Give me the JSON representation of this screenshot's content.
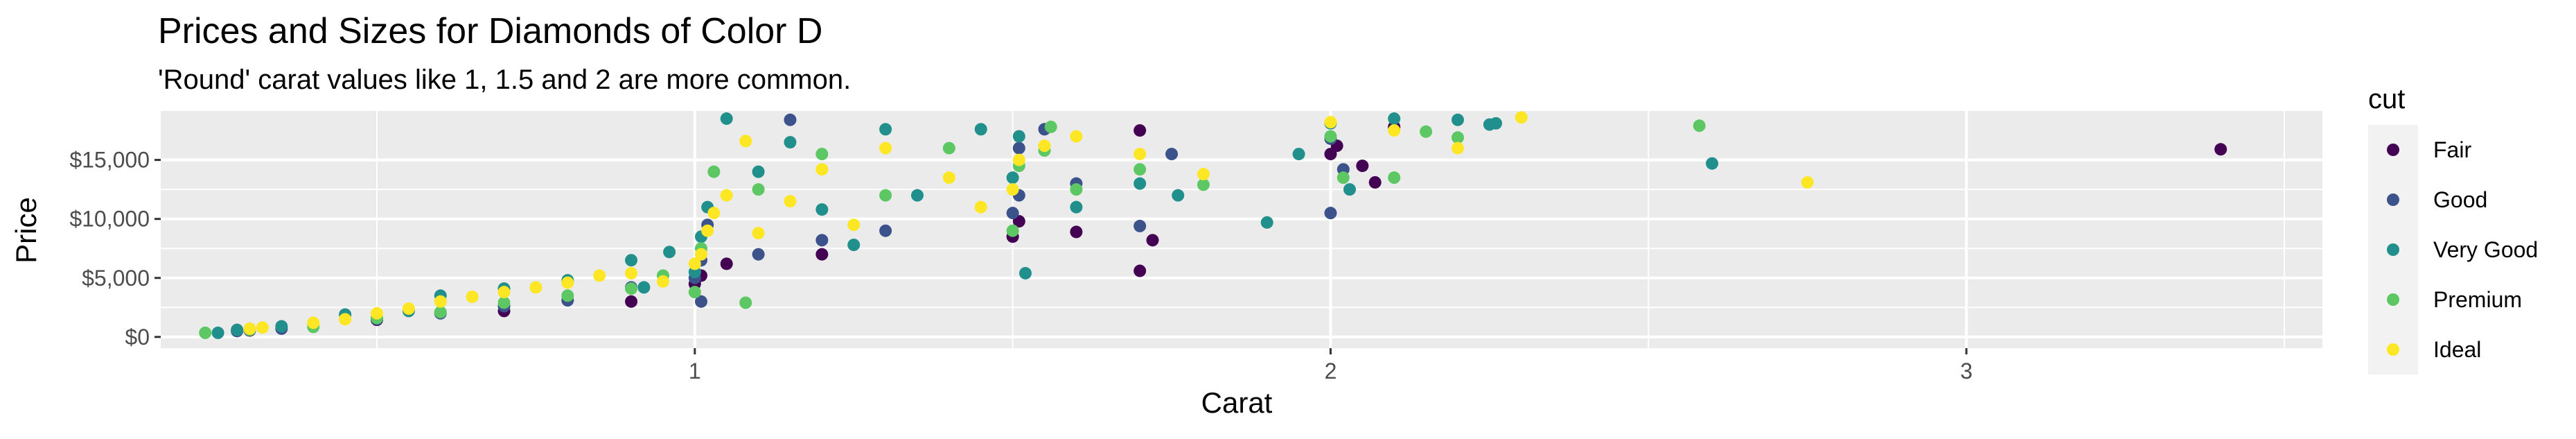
{
  "chart_data": {
    "type": "scatter",
    "title": "Prices and Sizes for Diamonds of Color D",
    "subtitle": "'Round' carat values like 1, 1.5 and 2 are more common.",
    "xlabel": "Carat",
    "ylabel": "Price",
    "xlim": [
      0.16,
      3.56
    ],
    "ylim": [
      -950,
      19150
    ],
    "x_ticks": [
      1,
      2,
      3
    ],
    "x_minor_ticks": [
      0.5,
      1.5,
      2.5,
      3.5
    ],
    "y_ticks": [
      0,
      5000,
      10000,
      15000
    ],
    "y_tick_labels": [
      "$0",
      "$5,000",
      "$10,000",
      "$15,000"
    ],
    "grid": true,
    "legend": {
      "title": "cut",
      "placement": "right",
      "entries": [
        {
          "name": "Fair",
          "color": "#440154"
        },
        {
          "name": "Good",
          "color": "#3B528B"
        },
        {
          "name": "Very Good",
          "color": "#21908C"
        },
        {
          "name": "Premium",
          "color": "#5DC863"
        },
        {
          "name": "Ideal",
          "color": "#FDE725"
        }
      ]
    },
    "series": [
      {
        "name": "Fair",
        "color": "#440154",
        "points": [
          [
            0.3,
            550
          ],
          [
            0.5,
            1450
          ],
          [
            0.7,
            2200
          ],
          [
            0.9,
            3000
          ],
          [
            1.0,
            4500
          ],
          [
            1.01,
            5200
          ],
          [
            1.05,
            6200
          ],
          [
            1.2,
            7000
          ],
          [
            1.5,
            8500
          ],
          [
            1.51,
            9800
          ],
          [
            1.6,
            8900
          ],
          [
            1.7,
            5600
          ],
          [
            1.72,
            8200
          ],
          [
            1.7,
            17500
          ],
          [
            2.0,
            15500
          ],
          [
            2.01,
            16200
          ],
          [
            2.05,
            14500
          ],
          [
            2.1,
            17800
          ],
          [
            2.07,
            13100
          ],
          [
            3.4,
            15900
          ]
        ]
      },
      {
        "name": "Good",
        "color": "#3B528B",
        "points": [
          [
            0.28,
            500
          ],
          [
            0.3,
            650
          ],
          [
            0.35,
            700
          ],
          [
            0.5,
            1500
          ],
          [
            0.6,
            2000
          ],
          [
            0.7,
            2600
          ],
          [
            0.8,
            3100
          ],
          [
            0.9,
            4200
          ],
          [
            1.0,
            5000
          ],
          [
            1.01,
            3000
          ],
          [
            1.01,
            6500
          ],
          [
            1.02,
            9500
          ],
          [
            1.1,
            7000
          ],
          [
            1.15,
            18400
          ],
          [
            1.2,
            8200
          ],
          [
            1.3,
            9000
          ],
          [
            1.5,
            10500
          ],
          [
            1.51,
            12000
          ],
          [
            1.51,
            16000
          ],
          [
            1.55,
            17600
          ],
          [
            1.6,
            13000
          ],
          [
            1.7,
            9400
          ],
          [
            1.75,
            15500
          ],
          [
            2.0,
            10500
          ],
          [
            2.0,
            16800
          ],
          [
            2.02,
            14200
          ]
        ]
      },
      {
        "name": "Very Good",
        "color": "#21908C",
        "points": [
          [
            0.25,
            350
          ],
          [
            0.28,
            600
          ],
          [
            0.35,
            900
          ],
          [
            0.45,
            1900
          ],
          [
            0.55,
            2200
          ],
          [
            0.6,
            3500
          ],
          [
            0.7,
            4100
          ],
          [
            0.8,
            4800
          ],
          [
            0.9,
            6500
          ],
          [
            0.92,
            4200
          ],
          [
            0.96,
            7200
          ],
          [
            1.0,
            5500
          ],
          [
            1.01,
            8500
          ],
          [
            1.02,
            11000
          ],
          [
            1.05,
            18500
          ],
          [
            1.1,
            14000
          ],
          [
            1.15,
            16500
          ],
          [
            1.2,
            10800
          ],
          [
            1.25,
            7800
          ],
          [
            1.3,
            17600
          ],
          [
            1.35,
            12000
          ],
          [
            1.45,
            17600
          ],
          [
            1.5,
            13500
          ],
          [
            1.51,
            17000
          ],
          [
            1.52,
            5400
          ],
          [
            1.6,
            11000
          ],
          [
            1.7,
            13000
          ],
          [
            1.76,
            12000
          ],
          [
            1.9,
            9700
          ],
          [
            1.95,
            15500
          ],
          [
            2.0,
            18100
          ],
          [
            2.03,
            12500
          ],
          [
            2.1,
            18500
          ],
          [
            2.2,
            18400
          ],
          [
            2.25,
            18000
          ],
          [
            2.26,
            18100
          ],
          [
            2.6,
            14700
          ]
        ]
      },
      {
        "name": "Premium",
        "color": "#5DC863",
        "points": [
          [
            0.23,
            350
          ],
          [
            0.3,
            600
          ],
          [
            0.4,
            850
          ],
          [
            0.5,
            1600
          ],
          [
            0.6,
            2100
          ],
          [
            0.7,
            2900
          ],
          [
            0.8,
            3500
          ],
          [
            0.9,
            4100
          ],
          [
            0.95,
            5200
          ],
          [
            1.0,
            3800
          ],
          [
            1.01,
            7500
          ],
          [
            1.03,
            14000
          ],
          [
            1.08,
            2900
          ],
          [
            1.1,
            12500
          ],
          [
            1.2,
            15500
          ],
          [
            1.3,
            12000
          ],
          [
            1.4,
            16000
          ],
          [
            1.5,
            9000
          ],
          [
            1.51,
            14500
          ],
          [
            1.55,
            15800
          ],
          [
            1.56,
            17800
          ],
          [
            1.6,
            12500
          ],
          [
            1.7,
            14200
          ],
          [
            1.8,
            12900
          ],
          [
            2.0,
            17000
          ],
          [
            2.02,
            13500
          ],
          [
            2.1,
            13500
          ],
          [
            2.15,
            17400
          ],
          [
            2.2,
            16900
          ],
          [
            2.58,
            17900
          ]
        ]
      },
      {
        "name": "Ideal",
        "color": "#FDE725",
        "points": [
          [
            0.3,
            700
          ],
          [
            0.32,
            800
          ],
          [
            0.4,
            1200
          ],
          [
            0.45,
            1500
          ],
          [
            0.5,
            2000
          ],
          [
            0.55,
            2400
          ],
          [
            0.6,
            3000
          ],
          [
            0.65,
            3400
          ],
          [
            0.7,
            3800
          ],
          [
            0.75,
            4200
          ],
          [
            0.8,
            4600
          ],
          [
            0.85,
            5200
          ],
          [
            0.9,
            5400
          ],
          [
            0.95,
            4700
          ],
          [
            1.0,
            6200
          ],
          [
            1.01,
            7000
          ],
          [
            1.02,
            9000
          ],
          [
            1.03,
            10500
          ],
          [
            1.05,
            12000
          ],
          [
            1.08,
            16600
          ],
          [
            1.1,
            8800
          ],
          [
            1.15,
            11500
          ],
          [
            1.2,
            14200
          ],
          [
            1.25,
            9500
          ],
          [
            1.3,
            16000
          ],
          [
            1.4,
            13500
          ],
          [
            1.45,
            11000
          ],
          [
            1.5,
            12500
          ],
          [
            1.51,
            15000
          ],
          [
            1.55,
            16200
          ],
          [
            1.6,
            17000
          ],
          [
            1.7,
            15500
          ],
          [
            1.8,
            13800
          ],
          [
            2.0,
            18200
          ],
          [
            2.1,
            17500
          ],
          [
            2.2,
            16000
          ],
          [
            2.3,
            18600
          ],
          [
            2.75,
            13100
          ]
        ]
      }
    ]
  }
}
